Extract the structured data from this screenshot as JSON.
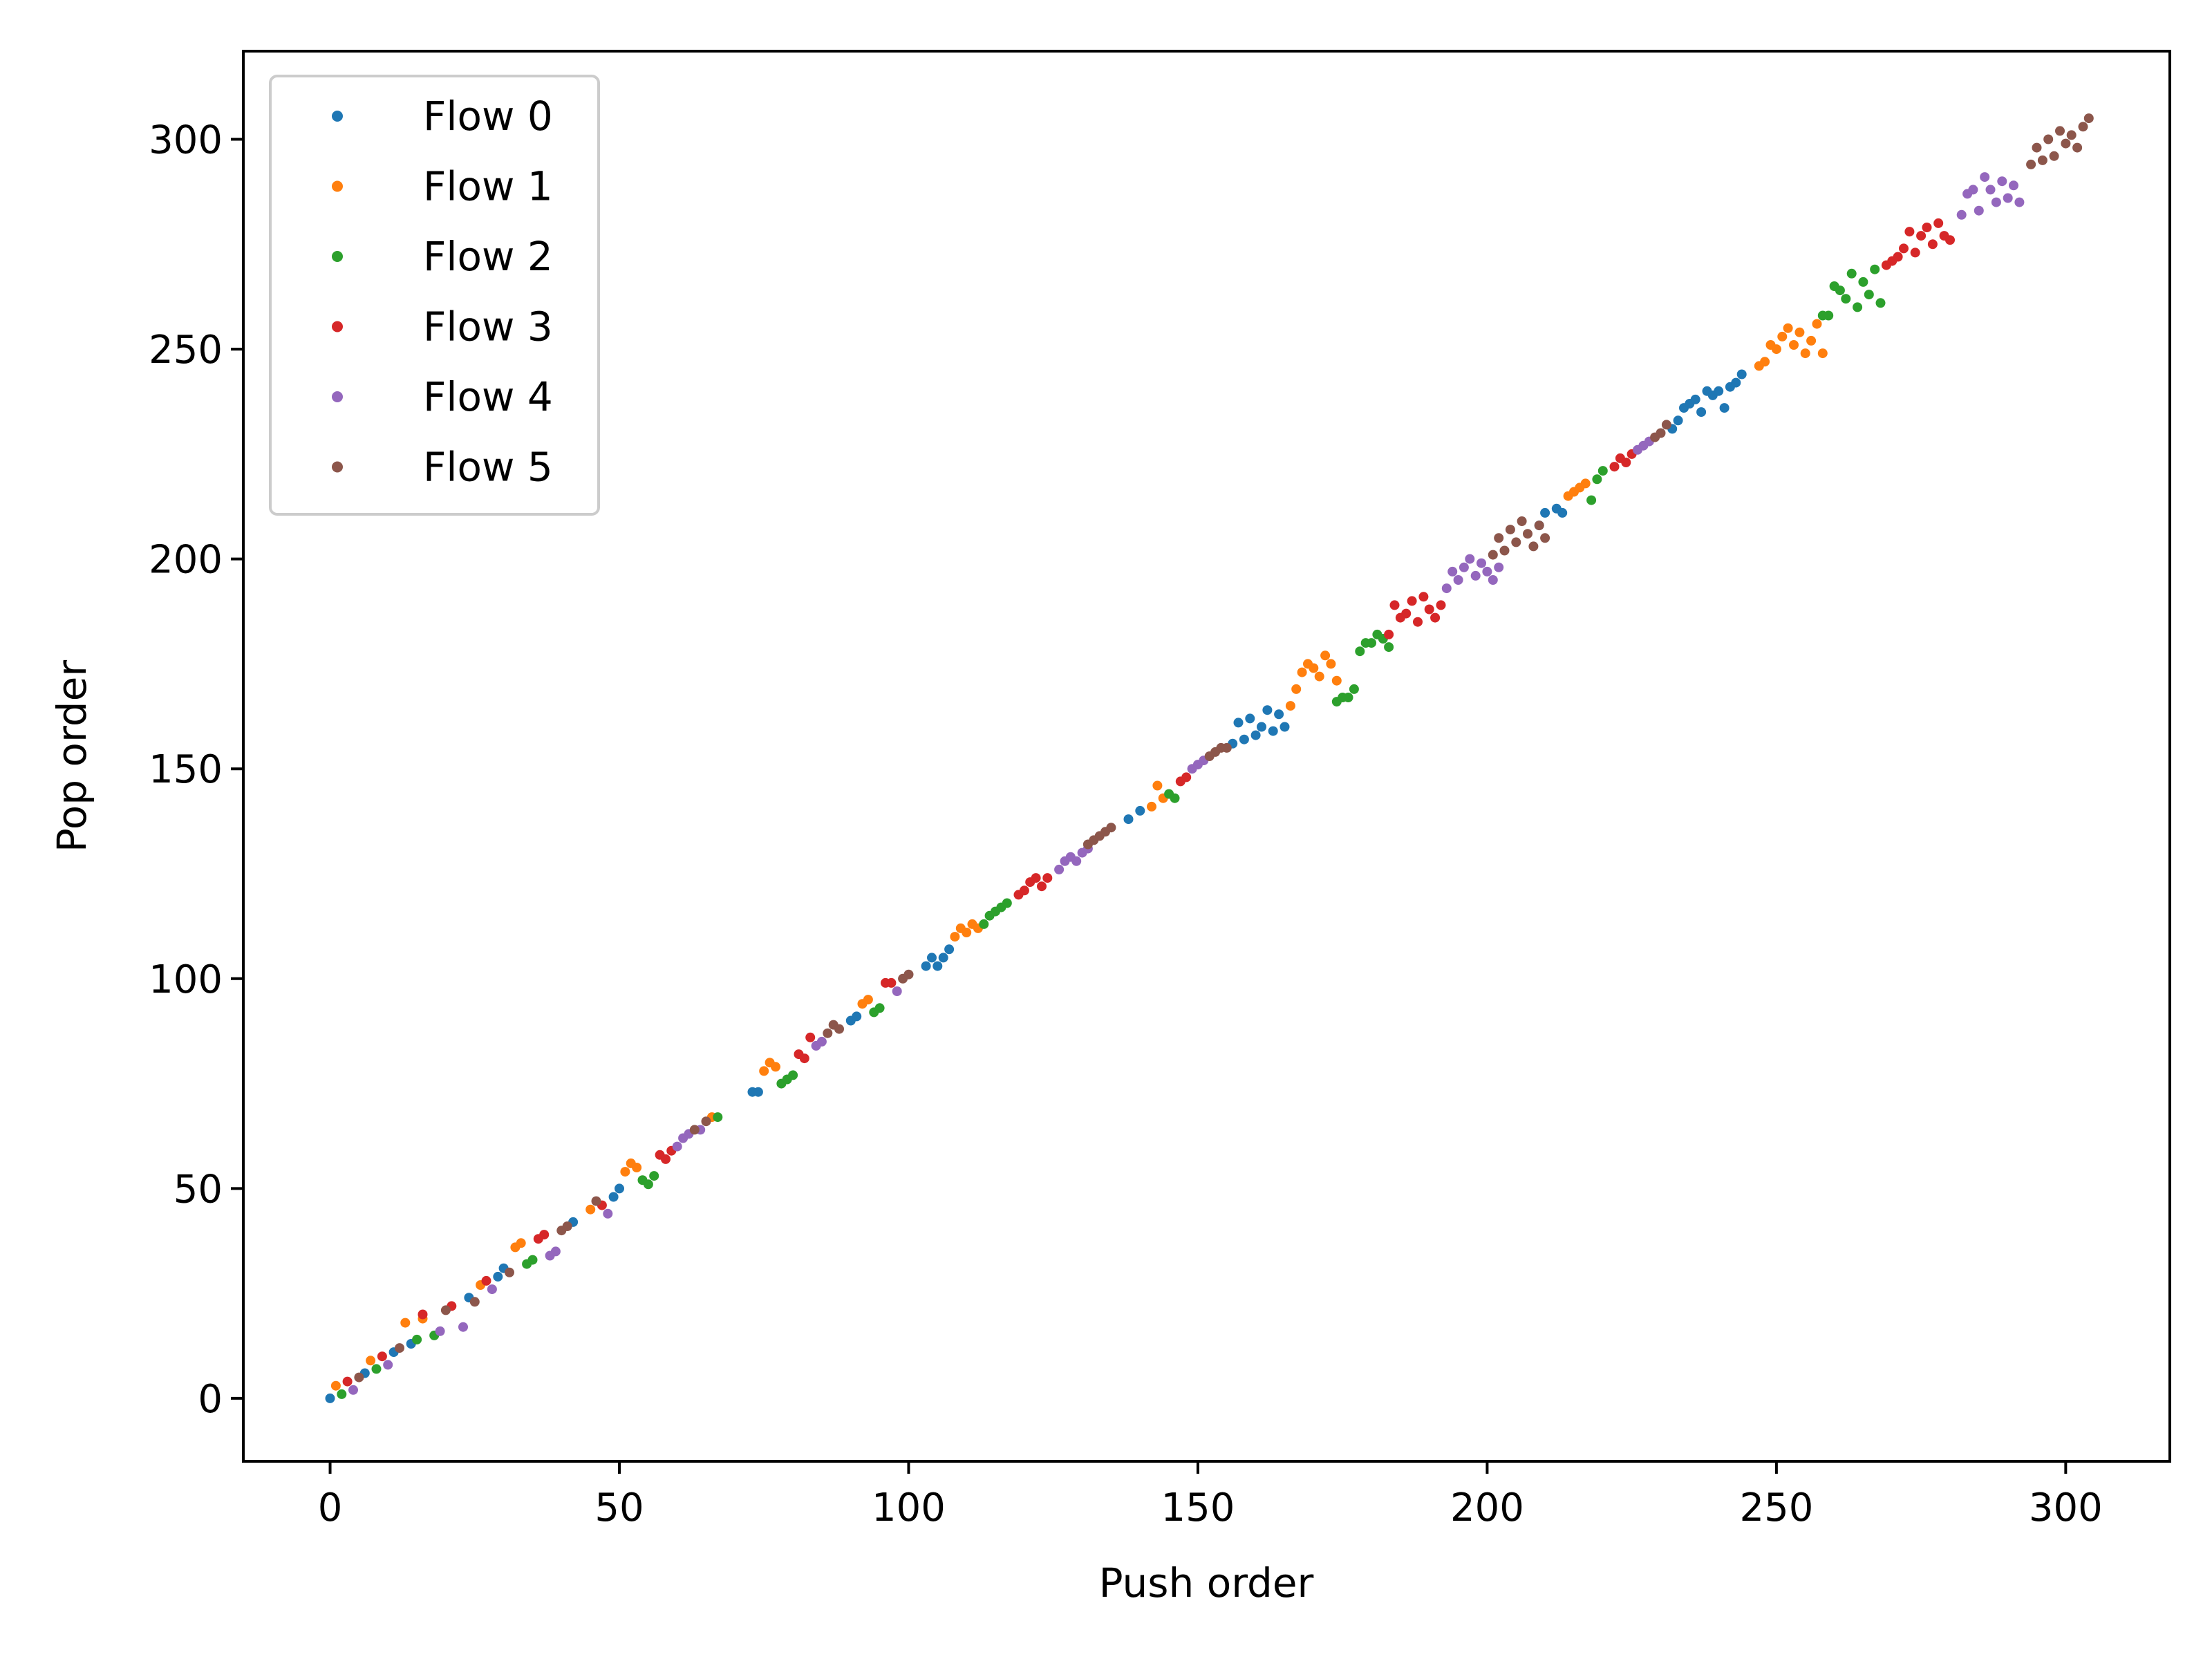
{
  "chart_data": {
    "type": "scatter",
    "title": "",
    "xlabel": "Push order",
    "ylabel": "Pop order",
    "xlim": [
      -15,
      318
    ],
    "ylim": [
      -15,
      321
    ],
    "xticks": [
      0,
      50,
      100,
      150,
      200,
      250,
      300
    ],
    "yticks": [
      0,
      50,
      100,
      150,
      200,
      250,
      300
    ],
    "grid": false,
    "legend_position": "top-left",
    "series": [
      {
        "name": "Flow 0",
        "color": "#1f77b4",
        "points": [
          [
            0,
            0
          ],
          [
            6,
            6
          ],
          [
            11,
            11
          ],
          [
            14,
            13
          ],
          [
            24,
            24
          ],
          [
            29,
            29
          ],
          [
            30,
            31
          ],
          [
            42,
            42
          ],
          [
            49,
            48
          ],
          [
            50,
            50
          ],
          [
            73,
            73
          ],
          [
            74,
            73
          ],
          [
            90,
            90
          ],
          [
            91,
            91
          ],
          [
            103,
            103
          ],
          [
            104,
            105
          ],
          [
            105,
            103
          ],
          [
            106,
            105
          ],
          [
            107,
            107
          ],
          [
            138,
            138
          ],
          [
            140,
            140
          ],
          [
            156,
            156
          ],
          [
            157,
            161
          ],
          [
            158,
            157
          ],
          [
            159,
            162
          ],
          [
            160,
            158
          ],
          [
            161,
            160
          ],
          [
            162,
            164
          ],
          [
            163,
            159
          ],
          [
            164,
            163
          ],
          [
            165,
            160
          ],
          [
            209,
            208
          ],
          [
            210,
            211
          ],
          [
            212,
            212
          ],
          [
            213,
            211
          ],
          [
            232,
            231
          ],
          [
            233,
            233
          ],
          [
            234,
            236
          ],
          [
            235,
            237
          ],
          [
            236,
            238
          ],
          [
            237,
            235
          ],
          [
            238,
            240
          ],
          [
            239,
            239
          ],
          [
            240,
            240
          ],
          [
            241,
            236
          ],
          [
            242,
            241
          ],
          [
            243,
            242
          ],
          [
            244,
            244
          ]
        ]
      },
      {
        "name": "Flow 1",
        "color": "#ff7f0e",
        "points": [
          [
            1,
            3
          ],
          [
            7,
            9
          ],
          [
            13,
            18
          ],
          [
            16,
            19
          ],
          [
            26,
            27
          ],
          [
            32,
            36
          ],
          [
            33,
            37
          ],
          [
            45,
            45
          ],
          [
            51,
            54
          ],
          [
            52,
            56
          ],
          [
            53,
            55
          ],
          [
            66,
            67
          ],
          [
            75,
            78
          ],
          [
            76,
            80
          ],
          [
            77,
            79
          ],
          [
            92,
            94
          ],
          [
            93,
            95
          ],
          [
            108,
            110
          ],
          [
            109,
            112
          ],
          [
            110,
            111
          ],
          [
            111,
            113
          ],
          [
            112,
            112
          ],
          [
            142,
            141
          ],
          [
            143,
            146
          ],
          [
            144,
            143
          ],
          [
            166,
            165
          ],
          [
            167,
            169
          ],
          [
            168,
            173
          ],
          [
            169,
            175
          ],
          [
            170,
            174
          ],
          [
            171,
            172
          ],
          [
            172,
            177
          ],
          [
            173,
            175
          ],
          [
            174,
            171
          ],
          [
            214,
            215
          ],
          [
            215,
            216
          ],
          [
            216,
            217
          ],
          [
            217,
            218
          ],
          [
            247,
            246
          ],
          [
            248,
            247
          ],
          [
            249,
            251
          ],
          [
            250,
            250
          ],
          [
            251,
            253
          ],
          [
            252,
            255
          ],
          [
            253,
            251
          ],
          [
            254,
            254
          ],
          [
            255,
            249
          ],
          [
            256,
            252
          ],
          [
            257,
            256
          ],
          [
            258,
            249
          ]
        ]
      },
      {
        "name": "Flow 2",
        "color": "#2ca02c",
        "points": [
          [
            2,
            1
          ],
          [
            8,
            7
          ],
          [
            15,
            14
          ],
          [
            18,
            15
          ],
          [
            34,
            32
          ],
          [
            35,
            33
          ],
          [
            54,
            52
          ],
          [
            55,
            51
          ],
          [
            56,
            53
          ],
          [
            67,
            67
          ],
          [
            78,
            75
          ],
          [
            79,
            76
          ],
          [
            80,
            77
          ],
          [
            94,
            92
          ],
          [
            95,
            93
          ],
          [
            113,
            113
          ],
          [
            114,
            115
          ],
          [
            115,
            116
          ],
          [
            116,
            117
          ],
          [
            117,
            118
          ],
          [
            145,
            144
          ],
          [
            146,
            143
          ],
          [
            174,
            166
          ],
          [
            175,
            167
          ],
          [
            176,
            167
          ],
          [
            177,
            169
          ],
          [
            178,
            178
          ],
          [
            179,
            180
          ],
          [
            180,
            180
          ],
          [
            181,
            182
          ],
          [
            182,
            181
          ],
          [
            183,
            179
          ],
          [
            218,
            214
          ],
          [
            219,
            219
          ],
          [
            220,
            221
          ],
          [
            258,
            258
          ],
          [
            259,
            258
          ],
          [
            260,
            265
          ],
          [
            261,
            264
          ],
          [
            262,
            262
          ],
          [
            263,
            268
          ],
          [
            264,
            260
          ],
          [
            265,
            266
          ],
          [
            266,
            263
          ],
          [
            267,
            269
          ],
          [
            268,
            261
          ]
        ]
      },
      {
        "name": "Flow 3",
        "color": "#d62728",
        "points": [
          [
            3,
            4
          ],
          [
            9,
            10
          ],
          [
            16,
            20
          ],
          [
            21,
            22
          ],
          [
            27,
            28
          ],
          [
            36,
            38
          ],
          [
            37,
            39
          ],
          [
            47,
            46
          ],
          [
            57,
            58
          ],
          [
            58,
            57
          ],
          [
            59,
            59
          ],
          [
            81,
            82
          ],
          [
            82,
            81
          ],
          [
            83,
            86
          ],
          [
            96,
            99
          ],
          [
            97,
            99
          ],
          [
            119,
            120
          ],
          [
            120,
            121
          ],
          [
            121,
            123
          ],
          [
            122,
            124
          ],
          [
            123,
            122
          ],
          [
            124,
            124
          ],
          [
            147,
            147
          ],
          [
            148,
            148
          ],
          [
            183,
            182
          ],
          [
            184,
            189
          ],
          [
            185,
            186
          ],
          [
            186,
            187
          ],
          [
            187,
            190
          ],
          [
            188,
            185
          ],
          [
            189,
            191
          ],
          [
            190,
            188
          ],
          [
            191,
            186
          ],
          [
            192,
            189
          ],
          [
            222,
            222
          ],
          [
            223,
            224
          ],
          [
            224,
            223
          ],
          [
            225,
            225
          ],
          [
            269,
            270
          ],
          [
            270,
            271
          ],
          [
            271,
            272
          ],
          [
            272,
            274
          ],
          [
            273,
            278
          ],
          [
            274,
            273
          ],
          [
            275,
            277
          ],
          [
            276,
            279
          ],
          [
            277,
            275
          ],
          [
            278,
            280
          ],
          [
            279,
            277
          ],
          [
            280,
            276
          ]
        ]
      },
      {
        "name": "Flow 4",
        "color": "#9467bd",
        "points": [
          [
            4,
            2
          ],
          [
            10,
            8
          ],
          [
            19,
            16
          ],
          [
            23,
            17
          ],
          [
            28,
            26
          ],
          [
            38,
            34
          ],
          [
            39,
            35
          ],
          [
            48,
            44
          ],
          [
            60,
            60
          ],
          [
            61,
            62
          ],
          [
            62,
            63
          ],
          [
            64,
            64
          ],
          [
            84,
            84
          ],
          [
            85,
            85
          ],
          [
            98,
            97
          ],
          [
            126,
            126
          ],
          [
            127,
            128
          ],
          [
            128,
            129
          ],
          [
            129,
            128
          ],
          [
            130,
            130
          ],
          [
            131,
            131
          ],
          [
            149,
            150
          ],
          [
            150,
            151
          ],
          [
            151,
            152
          ],
          [
            193,
            193
          ],
          [
            194,
            197
          ],
          [
            195,
            195
          ],
          [
            196,
            198
          ],
          [
            197,
            200
          ],
          [
            198,
            196
          ],
          [
            199,
            199
          ],
          [
            200,
            197
          ],
          [
            201,
            195
          ],
          [
            202,
            198
          ],
          [
            226,
            226
          ],
          [
            227,
            227
          ],
          [
            228,
            228
          ],
          [
            282,
            282
          ],
          [
            283,
            287
          ],
          [
            284,
            288
          ],
          [
            285,
            283
          ],
          [
            286,
            291
          ],
          [
            287,
            288
          ],
          [
            288,
            285
          ],
          [
            289,
            290
          ],
          [
            290,
            286
          ],
          [
            291,
            289
          ],
          [
            292,
            285
          ]
        ]
      },
      {
        "name": "Flow 5",
        "color": "#8c564b",
        "points": [
          [
            5,
            5
          ],
          [
            12,
            12
          ],
          [
            20,
            21
          ],
          [
            25,
            23
          ],
          [
            31,
            30
          ],
          [
            40,
            40
          ],
          [
            41,
            41
          ],
          [
            46,
            47
          ],
          [
            63,
            64
          ],
          [
            65,
            66
          ],
          [
            86,
            87
          ],
          [
            87,
            89
          ],
          [
            88,
            88
          ],
          [
            99,
            100
          ],
          [
            100,
            101
          ],
          [
            131,
            132
          ],
          [
            132,
            133
          ],
          [
            133,
            134
          ],
          [
            134,
            135
          ],
          [
            135,
            136
          ],
          [
            152,
            153
          ],
          [
            153,
            154
          ],
          [
            154,
            155
          ],
          [
            155,
            155
          ],
          [
            201,
            201
          ],
          [
            202,
            205
          ],
          [
            203,
            202
          ],
          [
            204,
            207
          ],
          [
            205,
            204
          ],
          [
            206,
            209
          ],
          [
            207,
            206
          ],
          [
            208,
            203
          ],
          [
            209,
            208
          ],
          [
            210,
            205
          ],
          [
            229,
            229
          ],
          [
            230,
            230
          ],
          [
            231,
            232
          ],
          [
            294,
            294
          ],
          [
            295,
            298
          ],
          [
            296,
            295
          ],
          [
            297,
            300
          ],
          [
            298,
            296
          ],
          [
            299,
            302
          ],
          [
            300,
            299
          ],
          [
            301,
            301
          ],
          [
            302,
            298
          ],
          [
            303,
            303
          ],
          [
            304,
            305
          ]
        ]
      }
    ]
  }
}
